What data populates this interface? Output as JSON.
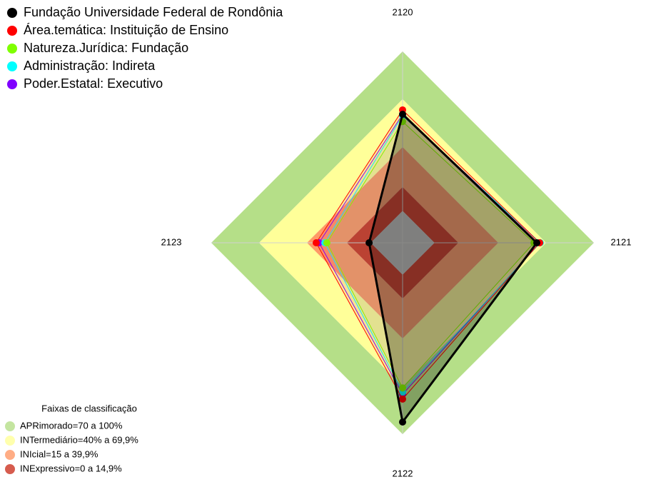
{
  "chart_data": {
    "type": "radar",
    "categories": [
      "2120",
      "2121",
      "2122",
      "2123"
    ],
    "rlim": [
      -20,
      100
    ],
    "series": [
      {
        "name": "Fundação Universidade Federal de Rondônia",
        "color": "#000000",
        "values": [
          60.6,
          64.2,
          92.4,
          1.0
        ]
      },
      {
        "name": "Área.temática: Instituição de Ensino",
        "color": "#ff0000",
        "values": [
          63.3,
          66.0,
          78.0,
          34.2
        ]
      },
      {
        "name": "Natureza.Jurídica: Fundação",
        "color": "#7fff00",
        "values": [
          56.0,
          62.4,
          71.0,
          27.5
        ]
      },
      {
        "name": "Administração: Indireta",
        "color": "#00ffff",
        "values": [
          59.7,
          66.4,
          73.6,
          28.8
        ]
      },
      {
        "name": "Poder.Estatal: Executivo",
        "color": "#8000ff",
        "values": [
          60.6,
          66.0,
          75.0,
          32.4
        ]
      }
    ],
    "bands_title": "Faixas de classificação",
    "bands": [
      {
        "name": "APRimorado=70 a 100%",
        "color": "#b5df88",
        "values": [
          70,
          100
        ]
      },
      {
        "name": "INTermediário=40% a 69,9%",
        "color": "#ffff99",
        "values": [
          40,
          70
        ]
      },
      {
        "name": "INIcial=15 a 39,9%",
        "color": "#ff9966",
        "values": [
          15,
          40
        ]
      },
      {
        "name": "INExpressivo=0 a 14,9%",
        "color": "#cc3322",
        "values": [
          0,
          15
        ]
      }
    ]
  }
}
